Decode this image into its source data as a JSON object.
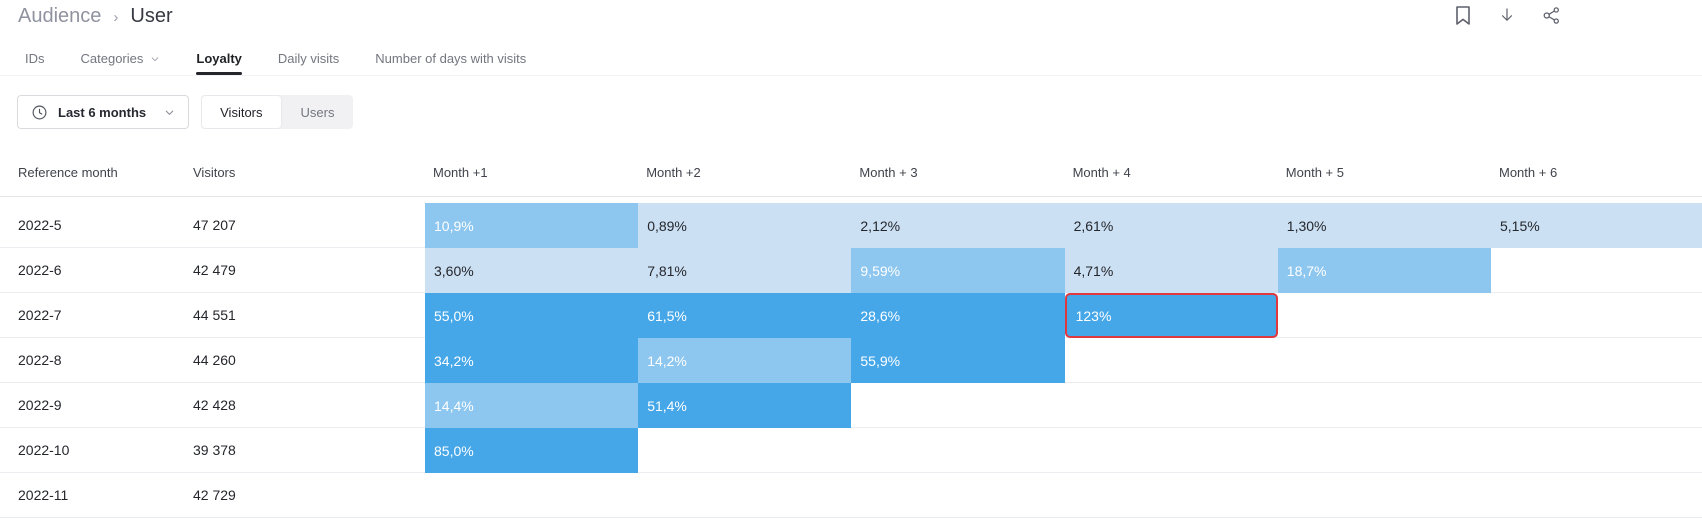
{
  "breadcrumb": {
    "section": "Audience",
    "separator": "›",
    "page": "User"
  },
  "tabs": [
    {
      "label": "IDs",
      "active": false,
      "has_dropdown": false
    },
    {
      "label": "Categories",
      "active": false,
      "has_dropdown": true
    },
    {
      "label": "Loyalty",
      "active": true,
      "has_dropdown": false
    },
    {
      "label": "Daily visits",
      "active": false,
      "has_dropdown": false
    },
    {
      "label": "Number of days with visits",
      "active": false,
      "has_dropdown": false
    }
  ],
  "filters": {
    "period_label": "Last 6 months",
    "view_toggle": {
      "options": [
        "Visitors",
        "Users"
      ],
      "selected": "Visitors"
    }
  },
  "table": {
    "columns": [
      "Reference month",
      "Visitors",
      "Month +1",
      "Month +2",
      "Month + 3",
      "Month + 4",
      "Month + 5",
      "Month + 6"
    ],
    "rows": [
      {
        "month": "2022-5",
        "visitors": "47 207",
        "cells": [
          {
            "value": "10,9%",
            "shade": "medium"
          },
          {
            "value": "0,89%",
            "shade": "light"
          },
          {
            "value": "2,12%",
            "shade": "light"
          },
          {
            "value": "2,61%",
            "shade": "light"
          },
          {
            "value": "1,30%",
            "shade": "light"
          },
          {
            "value": "5,15%",
            "shade": "light",
            "extend_to_edge": true
          }
        ]
      },
      {
        "month": "2022-6",
        "visitors": "42 479",
        "cells": [
          {
            "value": "3,60%",
            "shade": "light"
          },
          {
            "value": "7,81%",
            "shade": "light"
          },
          {
            "value": "9,59%",
            "shade": "medium"
          },
          {
            "value": "4,71%",
            "shade": "light"
          },
          {
            "value": "18,7%",
            "shade": "medium"
          }
        ]
      },
      {
        "month": "2022-7",
        "visitors": "44 551",
        "cells": [
          {
            "value": "55,0%",
            "shade": "dark"
          },
          {
            "value": "61,5%",
            "shade": "dark"
          },
          {
            "value": "28,6%",
            "shade": "dark"
          },
          {
            "value": "123%",
            "shade": "dark",
            "highlighted": true
          }
        ]
      },
      {
        "month": "2022-8",
        "visitors": "44 260",
        "cells": [
          {
            "value": "34,2%",
            "shade": "dark"
          },
          {
            "value": "14,2%",
            "shade": "medium"
          },
          {
            "value": "55,9%",
            "shade": "dark"
          }
        ]
      },
      {
        "month": "2022-9",
        "visitors": "42 428",
        "cells": [
          {
            "value": "14,4%",
            "shade": "medium"
          },
          {
            "value": "51,4%",
            "shade": "dark"
          }
        ]
      },
      {
        "month": "2022-10",
        "visitors": "39 378",
        "cells": [
          {
            "value": "85,0%",
            "shade": "dark"
          }
        ]
      },
      {
        "month": "2022-11",
        "visitors": "42 729",
        "cells": []
      }
    ]
  },
  "colors": {
    "cell_light": "#cce0f3",
    "cell_medium": "#8dc6ef",
    "cell_dark": "#45a6e8",
    "highlight_border": "#e0383f",
    "accent_underline": "#23252b"
  }
}
